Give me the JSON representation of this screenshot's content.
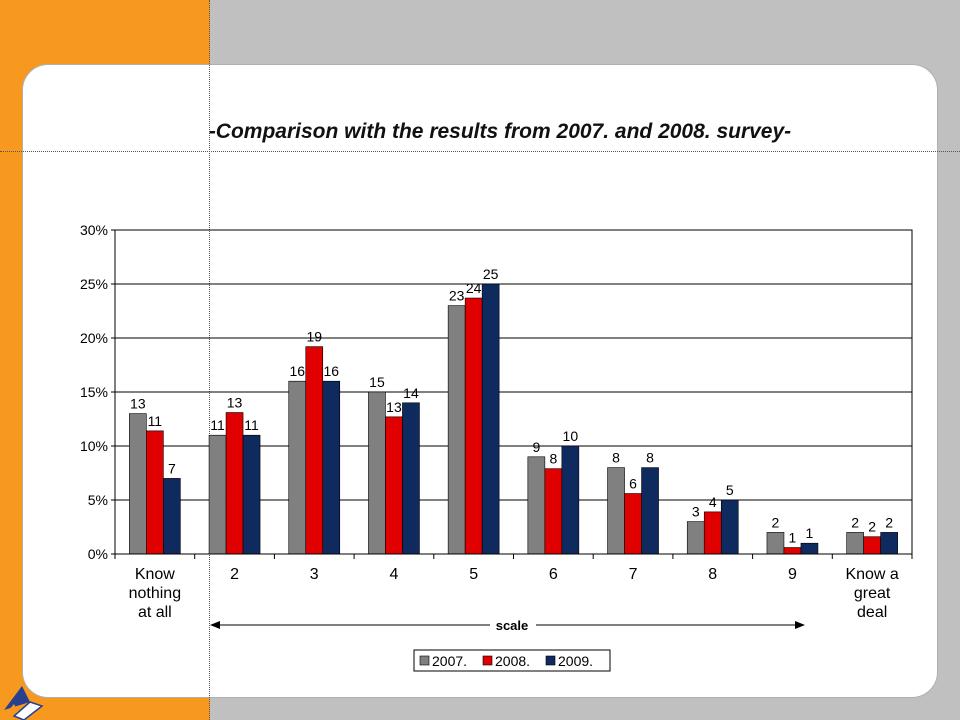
{
  "page": {
    "title": "-Comparison with the results from 2007. and 2008. survey-"
  },
  "colors": {
    "background": "#c0c0c0",
    "accent_strip": "#f7991f",
    "series_2007": "#808080",
    "series_2008": "#e00000",
    "series_2009": "#0f2a5e"
  },
  "chart_data": {
    "type": "bar",
    "title": "-Comparison with the results from 2007. and 2008. survey-",
    "categories": [
      "Know nothing at all",
      "2",
      "3",
      "4",
      "5",
      "6",
      "7",
      "8",
      "9",
      "Know a great deal"
    ],
    "category_lines": [
      [
        "Know",
        "nothing",
        "at all"
      ],
      [
        "2"
      ],
      [
        "3"
      ],
      [
        "4"
      ],
      [
        "5"
      ],
      [
        "6"
      ],
      [
        "7"
      ],
      [
        "8"
      ],
      [
        "9"
      ],
      [
        "Know a",
        "great",
        "deal"
      ]
    ],
    "series": [
      {
        "name": "2007.",
        "color": "#808080",
        "values": [
          13,
          11,
          16,
          15,
          23,
          9,
          8,
          3,
          2,
          2
        ],
        "labels": [
          "13",
          "11",
          "16",
          "15",
          "23",
          "9",
          "8",
          "3",
          "2",
          "2"
        ]
      },
      {
        "name": "2008.",
        "color": "#e00000",
        "values": [
          11.4,
          13.1,
          19.2,
          12.7,
          23.7,
          7.9,
          5.6,
          3.9,
          0.6,
          1.6
        ],
        "labels": [
          "11",
          "13",
          "19",
          "13",
          "24",
          "8",
          "6",
          "4",
          "1",
          "2"
        ]
      },
      {
        "name": "2009.",
        "color": "#0f2a5e",
        "values": [
          7,
          11,
          16,
          14,
          25,
          10,
          8,
          5,
          1,
          2
        ],
        "labels": [
          "7",
          "11",
          "16",
          "14",
          "25",
          "10",
          "8",
          "5",
          "1",
          "2"
        ]
      }
    ],
    "ylim": [
      0,
      30
    ],
    "yticks": [
      0,
      5,
      10,
      15,
      20,
      25,
      30
    ],
    "ytick_labels": [
      "0%",
      "5%",
      "10%",
      "15%",
      "20%",
      "25%",
      "30%"
    ],
    "xlabel": "",
    "ylabel": "",
    "grid": true,
    "legend_position": "bottom",
    "annotation": "scale"
  }
}
